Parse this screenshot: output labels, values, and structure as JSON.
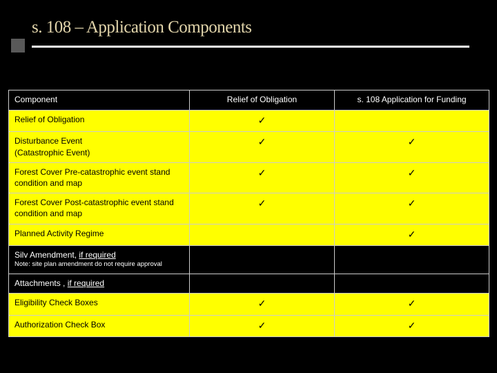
{
  "title": {
    "text": "s. 108 – Application Components",
    "color": "#e1d4aa",
    "fontsize": 25
  },
  "accent_tab_color": "#595959",
  "underline_color": "#ffffff",
  "table": {
    "highlight_color": "#ffff00",
    "border_color": "#cccccc",
    "checkmark_glyph": "✓",
    "columns": [
      {
        "label": "Component",
        "align": "left"
      },
      {
        "label": "Relief of Obligation",
        "align": "center"
      },
      {
        "label": "s. 108 Application for Funding",
        "align": "center"
      }
    ],
    "rows": [
      {
        "component_main": "Relief of Obligation",
        "component_sub": "",
        "note": "",
        "c2": "check",
        "c3": "",
        "hl": true
      },
      {
        "component_main": "Disturbance Event",
        "component_sub": "(Catastrophic Event)",
        "note": "",
        "c2": "check",
        "c3": "check",
        "hl": true
      },
      {
        "component_main": "Forest Cover Pre-catastrophic event stand condition and map",
        "component_sub": "",
        "note": "",
        "c2": "check",
        "c3": "check",
        "hl": true
      },
      {
        "component_main": "Forest Cover Post-catastrophic event stand condition and map",
        "component_sub": "",
        "note": "",
        "c2": "check",
        "c3": "check",
        "hl": true
      },
      {
        "component_main": "Planned Activity Regime",
        "component_sub": "",
        "note": "",
        "c2": "",
        "c3": "check",
        "hl": true
      },
      {
        "component_main": "Silv Amendment, ",
        "component_underlined": "if required",
        "component_sub": "",
        "note": "Note: site plan amendment  do not require approval",
        "c2": "",
        "c3": "",
        "hl": false
      },
      {
        "component_main": "Attachments , ",
        "component_underlined": "if required",
        "component_sub": "",
        "note": "",
        "c2": "",
        "c3": "",
        "hl": false
      },
      {
        "component_main": "Eligibility Check Boxes",
        "component_sub": "",
        "note": "",
        "c2": "check",
        "c3": "check",
        "hl": true
      },
      {
        "component_main": "Authorization Check Box",
        "component_sub": "",
        "note": "",
        "c2": "check",
        "c3": "check",
        "hl": true
      }
    ]
  }
}
